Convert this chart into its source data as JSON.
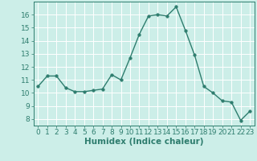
{
  "xlabel": "Humidex (Indice chaleur)",
  "x": [
    0,
    1,
    2,
    3,
    4,
    5,
    6,
    7,
    8,
    9,
    10,
    11,
    12,
    13,
    14,
    15,
    16,
    17,
    18,
    19,
    20,
    21,
    22,
    23
  ],
  "y": [
    10.5,
    11.3,
    11.3,
    10.4,
    10.1,
    10.1,
    10.2,
    10.3,
    11.4,
    11.0,
    12.7,
    14.5,
    15.9,
    16.0,
    15.9,
    16.6,
    14.8,
    12.9,
    10.5,
    10.0,
    9.4,
    9.3,
    7.9,
    8.6
  ],
  "line_color": "#2e7d6e",
  "marker_size": 2.5,
  "bg_color": "#cceee8",
  "grid_color": "#ffffff",
  "ylim": [
    7.5,
    17.0
  ],
  "xlim": [
    -0.5,
    23.5
  ],
  "yticks": [
    8,
    9,
    10,
    11,
    12,
    13,
    14,
    15,
    16
  ],
  "xticks": [
    0,
    1,
    2,
    3,
    4,
    5,
    6,
    7,
    8,
    9,
    10,
    11,
    12,
    13,
    14,
    15,
    16,
    17,
    18,
    19,
    20,
    21,
    22,
    23
  ],
  "tick_fontsize": 6.5,
  "xlabel_fontsize": 7.5
}
